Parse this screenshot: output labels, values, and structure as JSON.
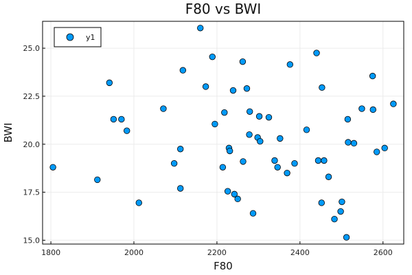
{
  "chart_data": {
    "type": "scatter",
    "title": "F80 vs BWI",
    "xlabel": "F80",
    "ylabel": "BWI",
    "xlim": [
      1780,
      2650
    ],
    "ylim": [
      14.8,
      26.4
    ],
    "xticks": [
      1800,
      2000,
      2200,
      2400,
      2600
    ],
    "yticks": [
      15.0,
      17.5,
      20.0,
      22.5,
      25.0
    ],
    "xtick_labels": [
      "1800",
      "2000",
      "2200",
      "2400",
      "2600"
    ],
    "ytick_labels": [
      "15.0",
      "17.5",
      "20.0",
      "22.5",
      "25.0"
    ],
    "grid": true,
    "legend": {
      "placement": "top-left",
      "entries": [
        "y1"
      ]
    },
    "colors": {
      "marker": "#009af9",
      "marker_edge": "#000000"
    },
    "series": [
      {
        "name": "y1",
        "points": [
          [
            1805,
            18.8
          ],
          [
            1912,
            18.15
          ],
          [
            1941,
            23.2
          ],
          [
            1951,
            21.3
          ],
          [
            1970,
            21.3
          ],
          [
            1983,
            20.7
          ],
          [
            2012,
            16.95
          ],
          [
            2071,
            21.85
          ],
          [
            2097,
            19.0
          ],
          [
            2112,
            17.7
          ],
          [
            2112,
            19.75
          ],
          [
            2118,
            23.85
          ],
          [
            2160,
            26.05
          ],
          [
            2173,
            23.0
          ],
          [
            2189,
            24.55
          ],
          [
            2195,
            21.05
          ],
          [
            2214,
            18.8
          ],
          [
            2218,
            21.65
          ],
          [
            2226,
            17.55
          ],
          [
            2229,
            19.8
          ],
          [
            2231,
            19.65
          ],
          [
            2239,
            22.8
          ],
          [
            2242,
            17.4
          ],
          [
            2250,
            17.15
          ],
          [
            2262,
            24.3
          ],
          [
            2263,
            19.1
          ],
          [
            2272,
            22.9
          ],
          [
            2278,
            20.5
          ],
          [
            2279,
            21.7
          ],
          [
            2287,
            16.4
          ],
          [
            2298,
            20.35
          ],
          [
            2302,
            21.45
          ],
          [
            2304,
            20.15
          ],
          [
            2325,
            21.4
          ],
          [
            2339,
            19.15
          ],
          [
            2346,
            18.8
          ],
          [
            2352,
            20.3
          ],
          [
            2369,
            18.5
          ],
          [
            2376,
            24.15
          ],
          [
            2387,
            19.0
          ],
          [
            2416,
            20.75
          ],
          [
            2440,
            24.75
          ],
          [
            2444,
            19.15
          ],
          [
            2452,
            16.95
          ],
          [
            2453,
            22.95
          ],
          [
            2458,
            19.15
          ],
          [
            2469,
            18.3
          ],
          [
            2483,
            16.1
          ],
          [
            2498,
            16.5
          ],
          [
            2501,
            17.0
          ],
          [
            2512,
            15.15
          ],
          [
            2515,
            21.3
          ],
          [
            2516,
            20.1
          ],
          [
            2530,
            20.05
          ],
          [
            2549,
            21.85
          ],
          [
            2575,
            23.55
          ],
          [
            2576,
            21.8
          ],
          [
            2585,
            19.6
          ],
          [
            2604,
            19.8
          ],
          [
            2625,
            22.1
          ]
        ]
      }
    ]
  }
}
